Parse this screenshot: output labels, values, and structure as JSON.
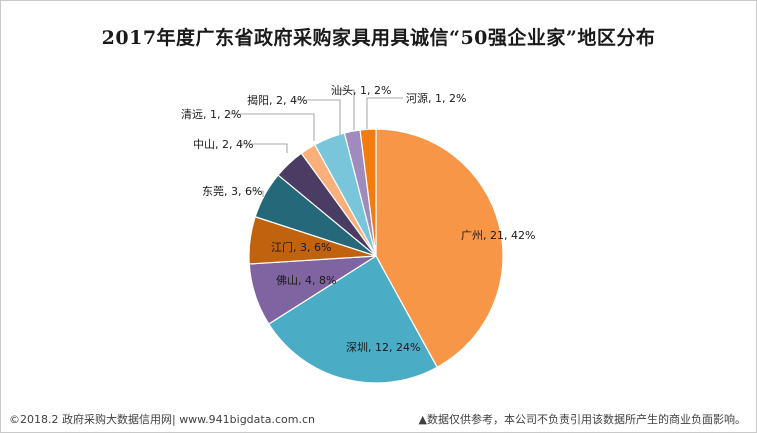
{
  "chart_data": {
    "type": "pie",
    "title": "2017年度广东省政府采购家具用具诚信“50强企业家”地区分布",
    "slices": [
      {
        "label": "广州",
        "value": 21,
        "percent": "42%",
        "color": "#F79646"
      },
      {
        "label": "深圳",
        "value": 12,
        "percent": "24%",
        "color": "#4BACC6"
      },
      {
        "label": "佛山",
        "value": 4,
        "percent": "8%",
        "color": "#8064A2"
      },
      {
        "label": "江门",
        "value": 3,
        "percent": "6%",
        "color": "#C0620E"
      },
      {
        "label": "东莞",
        "value": 3,
        "percent": "6%",
        "color": "#24687A"
      },
      {
        "label": "中山",
        "value": 2,
        "percent": "4%",
        "color": "#4A3C63"
      },
      {
        "label": "清远",
        "value": 1,
        "percent": "2%",
        "color": "#FAB07A"
      },
      {
        "label": "揭阳",
        "value": 2,
        "percent": "4%",
        "color": "#79C5D9"
      },
      {
        "label": "汕头",
        "value": 1,
        "percent": "2%",
        "color": "#A08BBE"
      },
      {
        "label": "河源",
        "value": 1,
        "percent": "2%",
        "color": "#F47C0F"
      }
    ]
  },
  "footer": {
    "source": "©2018.2 政府采购大数据信用网| www.941bigdata.com.cn",
    "disclaimer": "▲数据仅供参考，本公司不负责引用该数据所产生的商业负面影响。"
  }
}
